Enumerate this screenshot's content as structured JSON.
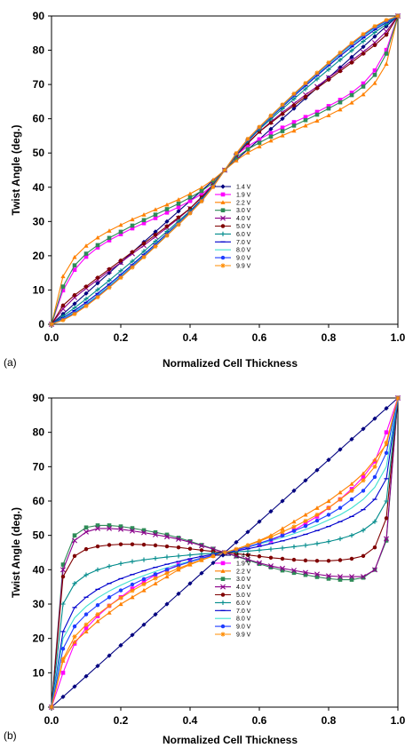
{
  "chart_data": [
    {
      "type": "line",
      "panel_label": "(a)",
      "xlabel": "Normalized Cell Thickness",
      "ylabel": "Twist Angle (deg.)",
      "xlim": [
        0,
        1
      ],
      "ylim": [
        0,
        90
      ],
      "xticks": [
        "0.0",
        "0.2",
        "0.4",
        "0.6",
        "0.8",
        "1.0"
      ],
      "yticks": [
        "0",
        "10",
        "20",
        "30",
        "40",
        "50",
        "60",
        "70",
        "80",
        "90"
      ],
      "grid": false,
      "legend_position": "lower-center",
      "x": [
        0,
        0.0333,
        0.0667,
        0.1,
        0.1333,
        0.1667,
        0.2,
        0.2333,
        0.2667,
        0.3,
        0.3333,
        0.3667,
        0.4,
        0.4333,
        0.4667,
        0.5,
        0.5333,
        0.5667,
        0.6,
        0.6333,
        0.6667,
        0.7,
        0.7333,
        0.7667,
        0.8,
        0.8333,
        0.8667,
        0.9,
        0.9333,
        0.9667,
        1
      ],
      "series": [
        {
          "name": "1.4 V",
          "color": "#00007f",
          "marker": "diamond",
          "values": [
            0,
            3.0,
            6.0,
            9.0,
            12.0,
            15.0,
            18.0,
            21.0,
            24.0,
            27.0,
            30.0,
            33.0,
            36.0,
            39.0,
            42.0,
            45.0,
            48.0,
            51.0,
            54.0,
            57.0,
            60.0,
            63.0,
            66.0,
            69.0,
            72.0,
            75.0,
            78.0,
            81.0,
            84.0,
            87.0,
            90
          ]
        },
        {
          "name": "1.9 V",
          "color": "#ff00ff",
          "marker": "square",
          "values": [
            0,
            9.9,
            15.9,
            19.7,
            22.4,
            24.5,
            26.3,
            28.0,
            29.5,
            31.0,
            32.6,
            34.2,
            36.0,
            38.0,
            40.6,
            45.0,
            49.4,
            52.0,
            54.0,
            55.8,
            57.4,
            59.0,
            60.5,
            62.0,
            63.7,
            65.5,
            67.6,
            70.3,
            74.1,
            80.1,
            90
          ]
        },
        {
          "name": "2.2 V",
          "color": "#ff8000",
          "marker": "triangle",
          "values": [
            0,
            14.0,
            19.6,
            22.9,
            25.3,
            27.3,
            29.0,
            30.6,
            32.0,
            33.5,
            34.9,
            36.4,
            38.1,
            39.9,
            42.2,
            45.0,
            47.8,
            50.1,
            51.9,
            53.6,
            55.1,
            56.5,
            58.0,
            59.4,
            61.0,
            62.7,
            64.7,
            67.1,
            70.4,
            76.0,
            90
          ]
        },
        {
          "name": "3.0 V",
          "color": "#2e8b57",
          "marker": "square",
          "values": [
            0,
            11.0,
            17.2,
            20.6,
            23.1,
            25.2,
            27.0,
            28.8,
            30.4,
            32.0,
            33.6,
            35.2,
            37.0,
            38.9,
            41.3,
            45.0,
            48.7,
            51.1,
            53.0,
            54.8,
            56.4,
            58.0,
            59.6,
            61.2,
            63.0,
            64.8,
            66.9,
            69.4,
            72.8,
            79.0,
            90
          ]
        },
        {
          "name": "4.0 V",
          "color": "#8b008b",
          "marker": "x",
          "values": [
            0,
            4.5,
            7.8,
            10.5,
            13.0,
            15.6,
            18.0,
            20.6,
            23.0,
            25.6,
            28.2,
            30.9,
            33.8,
            37.2,
            40.8,
            45.0,
            49.2,
            52.8,
            56.2,
            59.1,
            61.8,
            64.4,
            67.0,
            69.4,
            72.0,
            74.4,
            77.0,
            79.5,
            82.2,
            85.5,
            90
          ]
        },
        {
          "name": "5.0 V",
          "color": "#7f0000",
          "marker": "circle",
          "values": [
            0,
            5.5,
            8.5,
            11.0,
            13.6,
            16.1,
            18.6,
            21.1,
            23.6,
            26.1,
            28.6,
            31.2,
            33.8,
            37.0,
            40.6,
            45.0,
            49.4,
            53.0,
            56.2,
            58.8,
            61.4,
            63.9,
            66.4,
            68.9,
            71.4,
            73.9,
            76.4,
            79.0,
            81.5,
            84.5,
            90
          ]
        },
        {
          "name": "6.0 V",
          "color": "#008b8b",
          "marker": "plus",
          "values": [
            0,
            2.4,
            4.8,
            7.4,
            10.1,
            12.8,
            15.6,
            18.4,
            21.3,
            24.2,
            27.1,
            30.1,
            33.1,
            36.5,
            40.5,
            45.0,
            49.5,
            53.5,
            56.9,
            59.9,
            62.9,
            65.8,
            68.7,
            71.6,
            74.4,
            77.2,
            79.9,
            82.6,
            85.2,
            87.6,
            90
          ]
        },
        {
          "name": "7.0 V",
          "color": "#0000cd",
          "marker": "dash",
          "values": [
            0,
            1.9,
            4.0,
            6.4,
            9.0,
            11.7,
            14.5,
            17.4,
            20.4,
            23.4,
            26.5,
            29.6,
            32.8,
            36.3,
            40.4,
            45.0,
            49.6,
            53.7,
            57.2,
            60.4,
            63.5,
            66.6,
            69.6,
            72.6,
            75.5,
            78.3,
            81.0,
            83.6,
            86.0,
            88.1,
            90
          ]
        },
        {
          "name": "8.0 V",
          "color": "#40e0d0",
          "marker": "none",
          "values": [
            0,
            1.6,
            3.6,
            5.9,
            8.5,
            11.2,
            14.1,
            17.0,
            20.0,
            23.1,
            26.2,
            29.4,
            32.6,
            36.1,
            40.3,
            45.0,
            49.7,
            53.9,
            57.4,
            60.6,
            63.8,
            66.9,
            70.0,
            73.0,
            75.9,
            78.8,
            81.5,
            84.1,
            86.4,
            88.4,
            90
          ]
        },
        {
          "name": "9.0 V",
          "color": "#1e3cff",
          "marker": "circle",
          "values": [
            0,
            1.4,
            3.3,
            5.6,
            8.2,
            10.9,
            13.8,
            16.8,
            19.8,
            22.9,
            26.0,
            29.2,
            32.5,
            36.0,
            40.2,
            45.0,
            49.8,
            54.0,
            57.5,
            60.8,
            64.0,
            67.1,
            70.2,
            73.2,
            76.2,
            79.1,
            81.8,
            84.4,
            86.7,
            88.6,
            90
          ]
        },
        {
          "name": "9.9 V",
          "color": "#ff8c00",
          "marker": "star",
          "values": [
            0,
            1.2,
            3.0,
            5.3,
            7.9,
            10.7,
            13.6,
            16.6,
            19.6,
            22.7,
            25.9,
            29.1,
            32.4,
            35.9,
            40.1,
            45.0,
            49.9,
            54.1,
            57.6,
            60.9,
            64.1,
            67.3,
            70.4,
            73.4,
            76.4,
            79.3,
            82.1,
            84.7,
            87.0,
            88.8,
            90
          ]
        }
      ]
    },
    {
      "type": "line",
      "panel_label": "(b)",
      "xlabel": "Normalized Cell Thickness",
      "ylabel": "Twist Angle (deg.)",
      "xlim": [
        0,
        1
      ],
      "ylim": [
        0,
        90
      ],
      "xticks": [
        "0.0",
        "0.2",
        "0.4",
        "0.6",
        "0.8",
        "1.0"
      ],
      "yticks": [
        "0",
        "10",
        "20",
        "30",
        "40",
        "50",
        "60",
        "70",
        "80",
        "90"
      ],
      "grid": false,
      "legend_position": "lower-center",
      "x": [
        0,
        0.0333,
        0.0667,
        0.1,
        0.1333,
        0.1667,
        0.2,
        0.2333,
        0.2667,
        0.3,
        0.3333,
        0.3667,
        0.4,
        0.4333,
        0.4667,
        0.5,
        0.5333,
        0.5667,
        0.6,
        0.6333,
        0.6667,
        0.7,
        0.7333,
        0.7667,
        0.8,
        0.8333,
        0.8667,
        0.9,
        0.9333,
        0.9667,
        1
      ],
      "series": [
        {
          "name": "1.4 V",
          "color": "#00007f",
          "marker": "diamond",
          "values": [
            0,
            3.0,
            6.0,
            9.0,
            12.0,
            15.0,
            18.0,
            21.0,
            24.0,
            27.0,
            30.0,
            33.0,
            36.0,
            39.0,
            42.0,
            45.0,
            48.0,
            51.0,
            54.0,
            57.0,
            60.0,
            63.0,
            66.0,
            69.0,
            72.0,
            75.0,
            78.0,
            81.0,
            84.0,
            87.0,
            90
          ]
        },
        {
          "name": "1.9 V",
          "color": "#ff00ff",
          "marker": "square",
          "values": [
            0,
            10.0,
            18.5,
            23.0,
            26.5,
            29.5,
            32.0,
            34.5,
            36.5,
            38.5,
            40.0,
            41.5,
            42.5,
            43.5,
            44.3,
            45.0,
            45.7,
            46.5,
            47.5,
            48.5,
            50.0,
            51.5,
            53.5,
            55.5,
            58.0,
            60.5,
            63.5,
            67.0,
            71.5,
            80.0,
            90
          ]
        },
        {
          "name": "2.2 V",
          "color": "#ff8000",
          "marker": "triangle",
          "values": [
            0,
            13.5,
            19.0,
            22.0,
            25.0,
            27.5,
            30.0,
            32.0,
            34.0,
            36.0,
            38.0,
            40.0,
            41.5,
            42.8,
            44.0,
            45.0,
            46.0,
            47.2,
            48.5,
            50.0,
            52.0,
            54.0,
            56.0,
            58.0,
            60.0,
            62.5,
            65.0,
            68.0,
            72.0,
            76.5,
            90
          ]
        },
        {
          "name": "3.0 V",
          "color": "#2e8b57",
          "marker": "square",
          "values": [
            0,
            41.5,
            50.0,
            52.3,
            52.9,
            52.9,
            52.6,
            52.1,
            51.5,
            50.9,
            50.2,
            49.3,
            48.3,
            47.2,
            46.1,
            45.0,
            43.9,
            42.8,
            41.7,
            40.7,
            39.8,
            39.1,
            38.5,
            37.9,
            37.4,
            37.1,
            37.1,
            37.7,
            40.0,
            48.5,
            90
          ]
        },
        {
          "name": "4.0 V",
          "color": "#8b008b",
          "marker": "x",
          "values": [
            0,
            40.0,
            48.5,
            51.0,
            52.0,
            52.0,
            51.8,
            51.3,
            50.8,
            50.2,
            49.6,
            48.9,
            48.0,
            47.0,
            46.0,
            45.0,
            44.0,
            43.0,
            42.0,
            41.1,
            40.4,
            39.8,
            39.2,
            38.7,
            38.2,
            38.0,
            38.0,
            38.0,
            40.0,
            49.0,
            90
          ]
        },
        {
          "name": "5.0 V",
          "color": "#7f0000",
          "marker": "circle",
          "values": [
            0,
            38.0,
            44.0,
            46.0,
            46.8,
            47.2,
            47.4,
            47.4,
            47.3,
            47.1,
            46.8,
            46.5,
            46.1,
            45.7,
            45.3,
            45.0,
            44.7,
            44.3,
            43.9,
            43.5,
            43.2,
            42.9,
            42.7,
            42.6,
            42.6,
            42.8,
            43.2,
            44.0,
            46.5,
            55.0,
            90
          ]
        },
        {
          "name": "6.0 V",
          "color": "#008b8b",
          "marker": "plus",
          "values": [
            0,
            30.0,
            36.0,
            38.5,
            40.0,
            41.0,
            41.8,
            42.4,
            42.9,
            43.3,
            43.7,
            44.0,
            44.3,
            44.6,
            44.8,
            45.0,
            45.2,
            45.4,
            45.7,
            46.0,
            46.3,
            46.7,
            47.1,
            47.6,
            48.2,
            49.0,
            50.0,
            51.5,
            54.0,
            60.0,
            90
          ]
        },
        {
          "name": "7.0 V",
          "color": "#0000cd",
          "marker": "dash",
          "values": [
            0,
            22.0,
            29.0,
            32.0,
            34.3,
            36.0,
            37.4,
            38.6,
            39.7,
            40.7,
            41.6,
            42.4,
            43.2,
            43.9,
            44.5,
            45.0,
            45.5,
            46.1,
            46.8,
            47.6,
            48.4,
            49.3,
            50.3,
            51.4,
            52.6,
            54.0,
            55.5,
            57.5,
            60.5,
            66.5,
            90
          ]
        },
        {
          "name": "8.0 V",
          "color": "#40e0d0",
          "marker": "none",
          "values": [
            0,
            20.0,
            26.0,
            29.3,
            31.8,
            33.8,
            35.5,
            37.0,
            38.3,
            39.5,
            40.6,
            41.6,
            42.5,
            43.4,
            44.2,
            45.0,
            45.8,
            46.6,
            47.5,
            48.4,
            49.4,
            50.5,
            51.7,
            53.0,
            54.5,
            56.0,
            58.0,
            60.5,
            64.0,
            70.0,
            90
          ]
        },
        {
          "name": "9.0 V",
          "color": "#1e3cff",
          "marker": "circle",
          "values": [
            0,
            17.0,
            23.5,
            27.0,
            29.7,
            32.0,
            34.0,
            35.7,
            37.3,
            38.7,
            40.0,
            41.2,
            42.3,
            43.3,
            44.2,
            45.0,
            45.8,
            46.7,
            47.7,
            48.8,
            50.0,
            51.3,
            52.7,
            54.3,
            56.0,
            58.0,
            60.5,
            63.0,
            67.0,
            74.0,
            90
          ]
        },
        {
          "name": "9.9 V",
          "color": "#ff8c00",
          "marker": "star",
          "values": [
            0,
            14.0,
            20.5,
            24.0,
            27.0,
            29.5,
            31.8,
            33.9,
            35.8,
            37.5,
            39.0,
            40.4,
            41.7,
            42.9,
            44.0,
            45.0,
            46.0,
            47.1,
            48.3,
            49.6,
            51.0,
            52.5,
            54.2,
            56.0,
            58.0,
            60.5,
            63.0,
            66.0,
            70.0,
            77.0,
            90
          ]
        }
      ]
    }
  ]
}
